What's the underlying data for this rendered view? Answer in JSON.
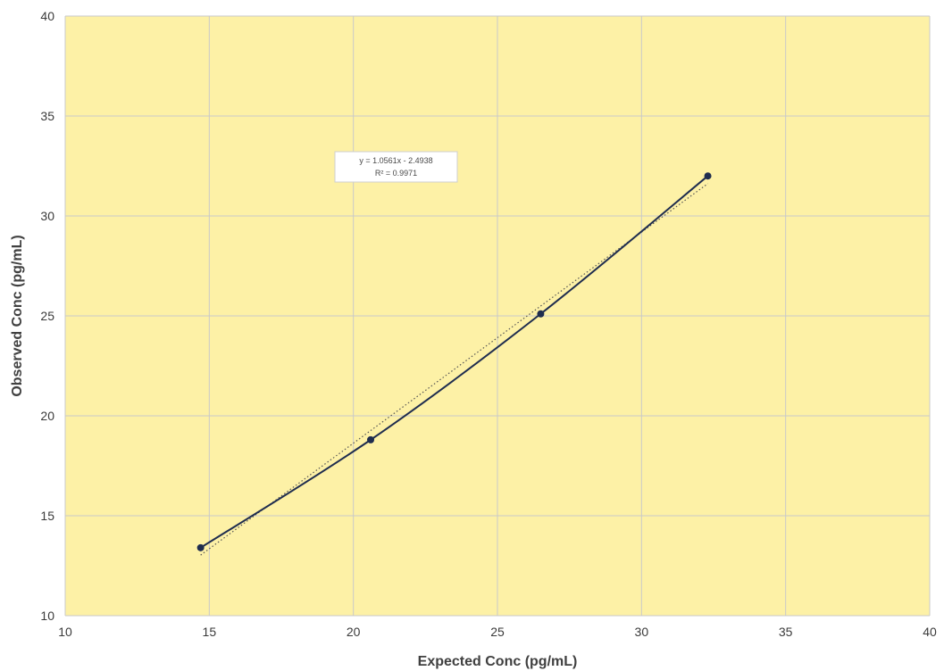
{
  "chart_data": {
    "type": "scatter",
    "xlabel": "Expected Conc (pg/mL)",
    "ylabel": "Observed Conc (pg/mL)",
    "xlim": [
      10,
      40
    ],
    "ylim": [
      10,
      40
    ],
    "xticks": [
      "10",
      "15",
      "20",
      "25",
      "30",
      "35",
      "40"
    ],
    "yticks": [
      "10",
      "15",
      "20",
      "25",
      "30",
      "35",
      "40"
    ],
    "grid": true,
    "legend": "none",
    "series": [
      {
        "x": [
          14.7,
          20.6,
          26.5,
          32.3
        ],
        "y": [
          13.4,
          18.8,
          25.1,
          32.0
        ],
        "line": "smooth",
        "color": "#1f2d4f"
      }
    ],
    "trendline": {
      "style": "dotted",
      "color": "#555555",
      "equation": "y = 1.0561x - 2.4938",
      "r_squared": "R² = 0.9971"
    },
    "colors": {
      "plot_background": "#fdf1a6",
      "gridline": "#c9c9c9",
      "series": "#1f2d4f"
    }
  }
}
